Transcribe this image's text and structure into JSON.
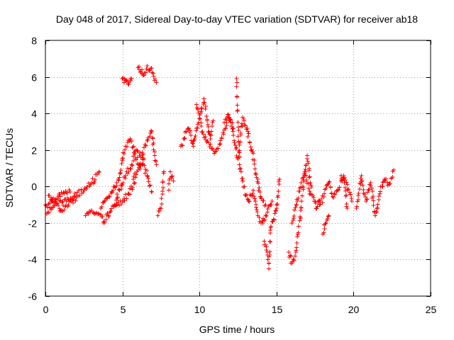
{
  "chart_data": {
    "type": "scatter",
    "title": "Day 048 of 2017, Sidereal Day-to-day VTEC variation (SDTVAR) for receiver ab18",
    "xlabel": "GPS time / hours",
    "ylabel": "SDTVAR / TECUs",
    "xlim": [
      0,
      25
    ],
    "ylim": [
      -6,
      8
    ],
    "xticks": [
      0,
      5,
      10,
      15,
      20,
      25
    ],
    "yticks": [
      -6,
      -4,
      -2,
      0,
      2,
      4,
      6,
      8
    ],
    "xtick_labels": [
      "0",
      "5",
      "10",
      "15",
      "20",
      "25"
    ],
    "ytick_labels": [
      "-6",
      "-4",
      "-2",
      "0",
      "2",
      "4",
      "6",
      "8"
    ],
    "grid": true,
    "legend": "none",
    "marker": "+",
    "color": "#ff0000",
    "series": [
      {
        "name": "SDTVAR",
        "segments": [
          {
            "x": [
              0.0,
              0.5,
              1.0,
              1.5,
              2.0,
              2.5,
              3.0,
              3.5
            ],
            "y": [
              -1.0,
              -0.9,
              -0.8,
              -0.7,
              -0.5,
              -0.2,
              0.2,
              0.8
            ]
          },
          {
            "x": [
              0.1,
              0.4,
              0.7,
              1.0,
              1.3,
              1.7,
              2.0
            ],
            "y": [
              -1.5,
              -1.2,
              -1.0,
              -1.3,
              -1.1,
              -0.8,
              -0.6
            ]
          },
          {
            "x": [
              0.2,
              0.6,
              1.1,
              1.6
            ],
            "y": [
              -0.5,
              -0.7,
              -0.4,
              -0.3
            ]
          },
          {
            "x": [
              2.6,
              3.0,
              3.4,
              3.8,
              4.2,
              4.6,
              5.0,
              5.4,
              5.8
            ],
            "y": [
              -1.6,
              -1.3,
              -1.5,
              -1.9,
              -1.4,
              -1.0,
              -0.8,
              -0.4,
              0.2
            ]
          },
          {
            "x": [
              3.6,
              4.0,
              4.4,
              4.8,
              5.0,
              5.2,
              5.5,
              5.8,
              6.1,
              6.4
            ],
            "y": [
              -1.2,
              -0.6,
              -0.2,
              0.5,
              1.5,
              2.2,
              2.6,
              1.8,
              1.2,
              1.5
            ]
          },
          {
            "x": [
              4.5,
              4.8,
              5.2,
              5.6,
              5.9,
              6.2,
              6.6,
              6.9,
              7.2
            ],
            "y": [
              -1.0,
              -0.2,
              0.6,
              1.2,
              2.0,
              1.6,
              2.5,
              3.0,
              1.2
            ]
          },
          {
            "x": [
              5.7,
              6.0,
              6.3,
              6.6,
              6.9
            ],
            "y": [
              0.4,
              0.9,
              1.2,
              0.6,
              -0.3
            ]
          },
          {
            "x": [
              7.3,
              7.5,
              7.7
            ],
            "y": [
              -1.6,
              -1.2,
              0.8
            ]
          },
          {
            "x": [
              8.0,
              8.1,
              8.3
            ],
            "y": [
              -0.2,
              0.8,
              0.3
            ]
          },
          {
            "x": [
              5.0,
              5.2,
              5.4,
              5.6
            ],
            "y": [
              5.9,
              5.8,
              5.6,
              5.9
            ]
          },
          {
            "x": [
              6.0,
              6.2,
              6.4,
              6.6,
              6.8,
              7.0,
              7.2
            ],
            "y": [
              6.5,
              6.3,
              6.1,
              6.6,
              6.4,
              6.2,
              5.7
            ]
          },
          {
            "x": [
              8.8,
              9.0,
              9.3,
              9.6,
              9.9,
              10.1,
              10.3,
              10.5,
              10.7,
              10.9
            ],
            "y": [
              2.2,
              2.6,
              3.2,
              2.2,
              3.4,
              4.1,
              4.8,
              3.6,
              2.6,
              3.6
            ]
          },
          {
            "x": [
              9.8,
              10.2,
              10.6,
              11.0,
              11.3,
              11.6,
              11.9,
              12.2
            ],
            "y": [
              4.5,
              3.0,
              2.4,
              1.9,
              2.3,
              3.1,
              3.8,
              3.2
            ]
          },
          {
            "x": [
              11.6,
              11.9,
              12.2,
              12.5,
              12.8,
              13.1,
              13.4,
              13.7,
              14.0,
              14.3
            ],
            "y": [
              3.5,
              3.9,
              2.8,
              1.5,
              3.8,
              3.2,
              2.0,
              0.5,
              -0.6,
              -1.0
            ]
          },
          {
            "x": [
              12.4,
              12.6,
              12.8,
              13.0,
              13.2,
              13.5,
              13.8,
              14.1,
              14.4,
              14.7
            ],
            "y": [
              5.9,
              1.2,
              0.3,
              -0.5,
              -0.8,
              -0.2,
              -1.6,
              -2.0,
              -1.4,
              -0.8
            ]
          },
          {
            "x": [
              14.2,
              14.4,
              14.5,
              14.6,
              14.8,
              15.0,
              15.2
            ],
            "y": [
              -3.0,
              -3.6,
              -4.5,
              -2.4,
              -1.8,
              -1.2,
              0.4
            ]
          },
          {
            "x": [
              15.8,
              16.0,
              16.2,
              16.4,
              16.6,
              16.8,
              17.0,
              17.2,
              17.4,
              17.6,
              17.8
            ],
            "y": [
              -3.6,
              -4.2,
              -3.8,
              -2.6,
              -1.2,
              0.6,
              1.7,
              0.2,
              -0.6,
              -1.2,
              -0.8
            ]
          },
          {
            "x": [
              16.0,
              16.3,
              16.6,
              16.9,
              17.2
            ],
            "y": [
              -2.0,
              -1.0,
              0.2,
              0.8,
              -0.4
            ]
          },
          {
            "x": [
              17.8,
              18.1,
              18.4,
              18.7,
              19.0,
              19.3,
              19.6,
              19.9
            ],
            "y": [
              -1.0,
              -0.4,
              0.2,
              -0.6,
              -0.2,
              0.5,
              0.1,
              -0.8
            ]
          },
          {
            "x": [
              20.2,
              20.5,
              20.8,
              21.1,
              21.4,
              21.7,
              22.0,
              22.3,
              22.6
            ],
            "y": [
              -1.2,
              0.6,
              -0.8,
              0.2,
              -1.6,
              -0.4,
              0.4,
              0.1,
              0.9
            ]
          },
          {
            "x": [
              19.2,
              19.4,
              19.6
            ],
            "y": [
              0.6,
              0.2,
              -1.2
            ]
          },
          {
            "x": [
              18.0,
              18.2,
              18.4
            ],
            "y": [
              -2.6,
              -2.0,
              -1.6
            ]
          }
        ]
      }
    ]
  }
}
